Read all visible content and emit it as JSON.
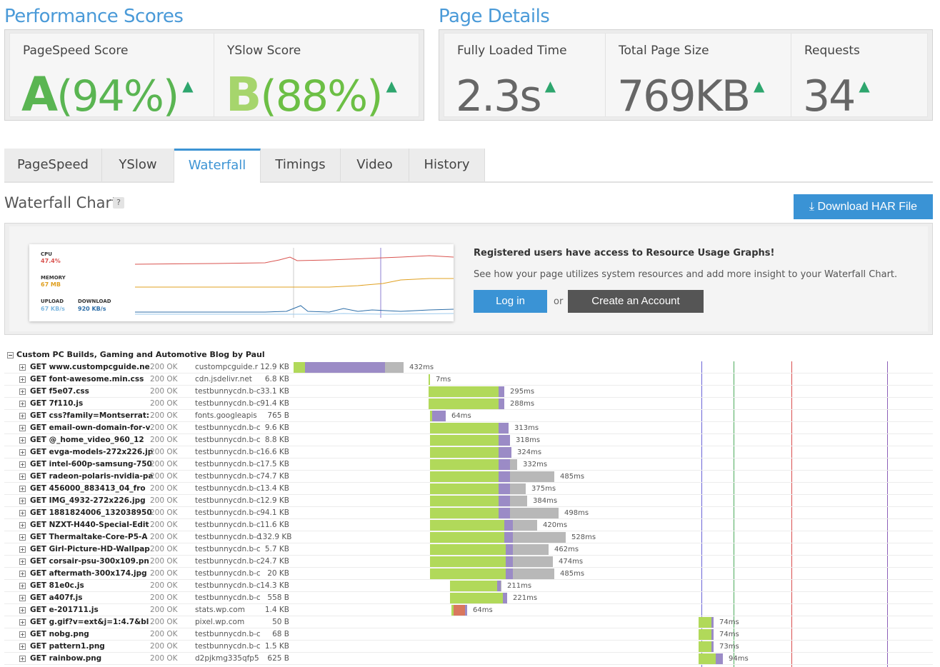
{
  "performance": {
    "title": "Performance Scores",
    "pagespeed_label": "PageSpeed Score",
    "pagespeed_grade": "A",
    "pagespeed_pct": "(94%)",
    "yslow_label": "YSlow Score",
    "yslow_grade": "B",
    "yslow_pct": "(88%)"
  },
  "details": {
    "title": "Page Details",
    "load_label": "Fully Loaded Time",
    "load_value": "2.3s",
    "size_label": "Total Page Size",
    "size_value": "769KB",
    "req_label": "Requests",
    "req_value": "34"
  },
  "tabs": [
    "PageSpeed",
    "YSlow",
    "Waterfall",
    "Timings",
    "Video",
    "History"
  ],
  "waterfall": {
    "title": "Waterfall Chart",
    "help": "?",
    "har_button": "Download HAR File",
    "group_title": "Custom PC Builds, Gaming and Automotive Blog by Paul"
  },
  "promo": {
    "cpu_label": "CPU",
    "cpu_value": "47.4%",
    "memory_label": "MEMORY",
    "memory_value": "67 MB",
    "upload_label": "UPLOAD",
    "upload_value": "67 KB/s",
    "download_label": "DOWNLOAD",
    "download_value": "920 KB/s",
    "heading": "Registered users have access to Resource Usage Graphs!",
    "text": "See how your page utilizes system resources and add more insight to your Waterfall Chart.",
    "login": "Log in",
    "or": "or",
    "create": "Create an Account"
  },
  "colors": {
    "accent": "#3a93d5",
    "grade_green": "#5ab552",
    "bar_green": "#b1d95a",
    "bar_purple": "#9b8bc6",
    "bar_grey": "#b8b8b8"
  },
  "requests": [
    {
      "url": "GET www.custompcguide.ne",
      "status": "200 OK",
      "domain": "custompcguide.r",
      "size": "12.9 KB",
      "time": "432ms"
    },
    {
      "url": "GET font-awesome.min.css",
      "status": "200 OK",
      "domain": "cdn.jsdelivr.net",
      "size": "6.8 KB",
      "time": "7ms"
    },
    {
      "url": "GET f5e07.css",
      "status": "200 OK",
      "domain": "testbunnycdn.b-c",
      "size": "33.1 KB",
      "time": "295ms"
    },
    {
      "url": "GET 7f110.js",
      "status": "200 OK",
      "domain": "testbunnycdn.b-c",
      "size": "91.4 KB",
      "time": "288ms"
    },
    {
      "url": "GET css?family=Montserrat:",
      "status": "200 OK",
      "domain": "fonts.googleapis",
      "size": "765 B",
      "time": "64ms"
    },
    {
      "url": "GET email-own-domain-for-v",
      "status": "200 OK",
      "domain": "testbunnycdn.b-c",
      "size": "9.6 KB",
      "time": "313ms"
    },
    {
      "url": "GET @_home_video_960_12",
      "status": "200 OK",
      "domain": "testbunnycdn.b-c",
      "size": "8.8 KB",
      "time": "318ms"
    },
    {
      "url": "GET evga-models-272x226.jp",
      "status": "200 OK",
      "domain": "testbunnycdn.b-c",
      "size": "16.6 KB",
      "time": "324ms"
    },
    {
      "url": "GET intel-600p-samsung-750",
      "status": "200 OK",
      "domain": "testbunnycdn.b-c",
      "size": "17.5 KB",
      "time": "332ms"
    },
    {
      "url": "GET radeon-polaris-nvidia-pa",
      "status": "200 OK",
      "domain": "testbunnycdn.b-c",
      "size": "74.7 KB",
      "time": "485ms"
    },
    {
      "url": "GET 456000_883413_04_fro",
      "status": "200 OK",
      "domain": "testbunnycdn.b-c",
      "size": "13.4 KB",
      "time": "375ms"
    },
    {
      "url": "GET IMG_4932-272x226.jpg",
      "status": "200 OK",
      "domain": "testbunnycdn.b-c",
      "size": "12.9 KB",
      "time": "384ms"
    },
    {
      "url": "GET 1881824006_132038950",
      "status": "200 OK",
      "domain": "testbunnycdn.b-c",
      "size": "94.1 KB",
      "time": "498ms"
    },
    {
      "url": "GET NZXT-H440-Special-Edit",
      "status": "200 OK",
      "domain": "testbunnycdn.b-c",
      "size": "11.6 KB",
      "time": "420ms"
    },
    {
      "url": "GET Thermaltake-Core-P5-A",
      "status": "200 OK",
      "domain": "testbunnycdn.b-c",
      "size": "132.9 KB",
      "time": "528ms"
    },
    {
      "url": "GET Girl-Picture-HD-Wallpap",
      "status": "200 OK",
      "domain": "testbunnycdn.b-c",
      "size": "5.7 KB",
      "time": "462ms"
    },
    {
      "url": "GET corsair-psu-300x109.pn",
      "status": "200 OK",
      "domain": "testbunnycdn.b-c",
      "size": "24.7 KB",
      "time": "474ms"
    },
    {
      "url": "GET aftermath-300x174.jpg",
      "status": "200 OK",
      "domain": "testbunnycdn.b-c",
      "size": "20 KB",
      "time": "485ms"
    },
    {
      "url": "GET 81e0c.js",
      "status": "200 OK",
      "domain": "testbunnycdn.b-c",
      "size": "14.3 KB",
      "time": "211ms"
    },
    {
      "url": "GET a407f.js",
      "status": "200 OK",
      "domain": "testbunnycdn.b-c",
      "size": "558 B",
      "time": "221ms"
    },
    {
      "url": "GET e-201711.js",
      "status": "200 OK",
      "domain": "stats.wp.com",
      "size": "1.4 KB",
      "time": "64ms"
    },
    {
      "url": "GET g.gif?v=ext&j=1:4.7&bl",
      "status": "200 OK",
      "domain": "pixel.wp.com",
      "size": "50 B",
      "time": "74ms"
    },
    {
      "url": "GET nobg.png",
      "status": "200 OK",
      "domain": "testbunnycdn.b-c",
      "size": "68 B",
      "time": "74ms"
    },
    {
      "url": "GET pattern1.png",
      "status": "200 OK",
      "domain": "testbunnycdn.b-c",
      "size": "1.5 KB",
      "time": "73ms"
    },
    {
      "url": "GET rainbow.png",
      "status": "200 OK",
      "domain": "d2pjkmg335qfp5",
      "size": "625 B",
      "time": "94ms"
    }
  ]
}
